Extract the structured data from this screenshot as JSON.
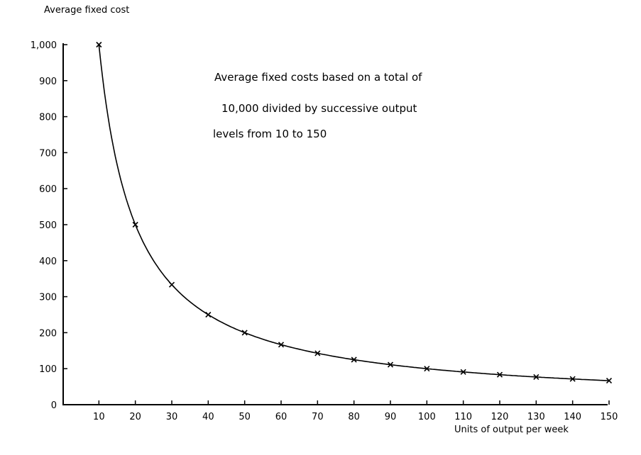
{
  "chart_data": {
    "type": "line",
    "title": "",
    "ylabel": "Average fixed cost",
    "xlabel": "Units of output per week",
    "annotation": [
      "Average fixed costs based on a total of",
      "10,000 divided by successive output",
      "levels from 10 to 150"
    ],
    "x": [
      10,
      20,
      30,
      40,
      50,
      60,
      70,
      80,
      90,
      100,
      110,
      120,
      130,
      140,
      150
    ],
    "series": [
      {
        "name": "Average fixed cost",
        "marker": "x",
        "values": [
          1000,
          500,
          333.3,
          250,
          200,
          166.7,
          142.9,
          125,
          111.1,
          100,
          90.9,
          83.3,
          76.9,
          71.4,
          66.7
        ]
      }
    ],
    "xticks": [
      "10",
      "20",
      "30",
      "40",
      "50",
      "60",
      "70",
      "80",
      "90",
      "100",
      "110",
      "120",
      "130",
      "140",
      "150"
    ],
    "yticks": [
      "0",
      "100",
      "200",
      "300",
      "400",
      "500",
      "600",
      "700",
      "800",
      "900",
      "1,000"
    ],
    "xlim": [
      0,
      150
    ],
    "ylim": [
      0,
      1000
    ],
    "grid": false,
    "legend": "none"
  }
}
